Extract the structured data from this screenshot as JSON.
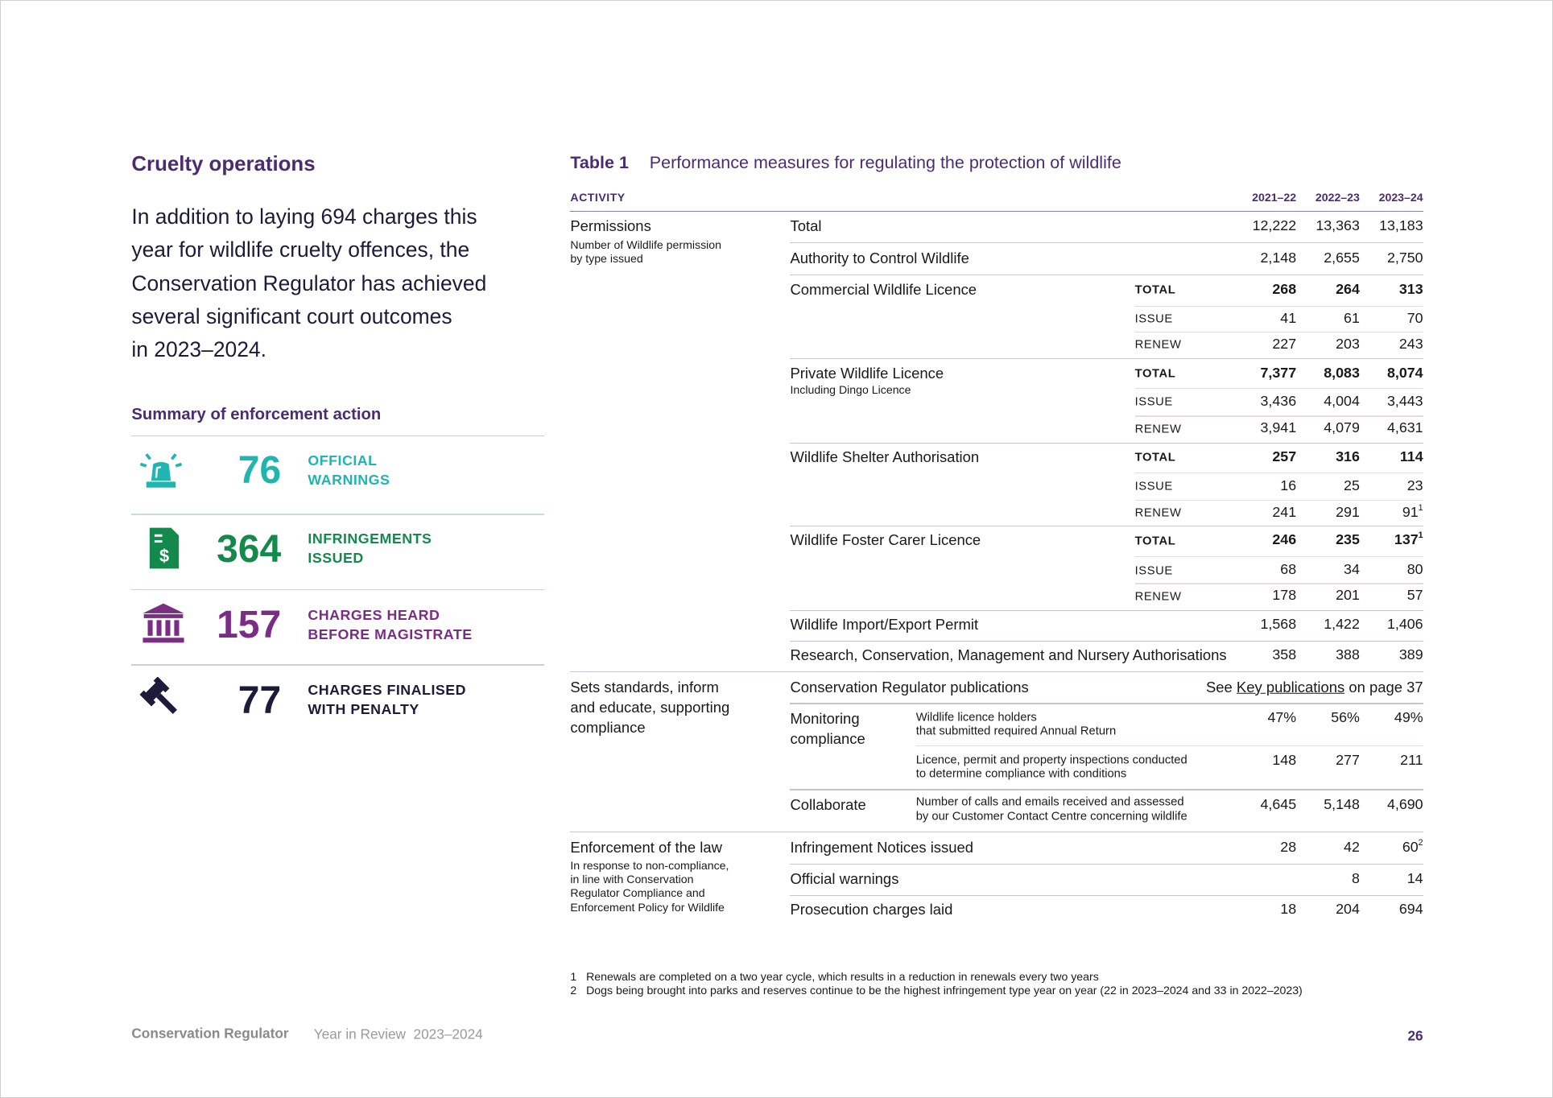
{
  "left": {
    "heading": "Cruelty operations",
    "intro": [
      "In addition to laying 694 charges this",
      "year for wildlife cruelty offences, the",
      "Conservation Regulator has achieved",
      "several significant court outcomes",
      "in 2023–2024."
    ],
    "summary_title": "Summary of enforcement action",
    "summary": [
      {
        "number": "76",
        "label": [
          "OFFICIAL",
          "WARNINGS"
        ]
      },
      {
        "number": "364",
        "label": [
          "INFRINGEMENTS",
          "ISSUED"
        ]
      },
      {
        "number": "157",
        "label": [
          "CHARGES HEARD",
          "BEFORE MAGISTRATE"
        ]
      },
      {
        "number": "77",
        "label": [
          "CHARGES FINALISED",
          "WITH PENALTY"
        ]
      }
    ]
  },
  "table": {
    "label": "Table 1",
    "title": "Performance measures for regulating the protection of wildlife",
    "columns": [
      "ACTIVITY",
      "2021–22",
      "2022–23",
      "2023–24"
    ],
    "groups": [
      {
        "activity": [
          "Permissions"
        ],
        "note": [
          "Number of Wildlife permission",
          "by type issued"
        ],
        "rows": [
          {
            "measure": "Total",
            "values": [
              "12,222",
              "13,363",
              "13,183"
            ]
          },
          {
            "measure": "Authority to Control Wildlife",
            "values": [
              "2,148",
              "2,655",
              "2,750"
            ]
          },
          {
            "measure": "Commercial Wildlife Licence",
            "sub": [
              {
                "type": "TOTAL",
                "values": [
                  "268",
                  "264",
                  "313"
                ]
              },
              {
                "type": "ISSUE",
                "values": [
                  "41",
                  "61",
                  "70"
                ]
              },
              {
                "type": "RENEW",
                "values": [
                  "227",
                  "203",
                  "243"
                ]
              }
            ]
          },
          {
            "measure": "Private Wildlife Licence",
            "detail": "Including Dingo Licence",
            "sub": [
              {
                "type": "TOTAL",
                "values": [
                  "7,377",
                  "8,083",
                  "8,074"
                ]
              },
              {
                "type": "ISSUE",
                "values": [
                  "3,436",
                  "4,004",
                  "3,443"
                ]
              },
              {
                "type": "RENEW",
                "values": [
                  "3,941",
                  "4,079",
                  "4,631"
                ]
              }
            ]
          },
          {
            "measure": "Wildlife Shelter Authorisation",
            "sub": [
              {
                "type": "TOTAL",
                "values": [
                  "257",
                  "316",
                  "114"
                ]
              },
              {
                "type": "ISSUE",
                "values": [
                  "16",
                  "25",
                  "23"
                ]
              },
              {
                "type": "RENEW",
                "values": [
                  "241",
                  "291",
                  {
                    "text": "91",
                    "sup": "1"
                  }
                ]
              }
            ]
          },
          {
            "measure": "Wildlife Foster Carer Licence",
            "sub": [
              {
                "type": "TOTAL",
                "values": [
                  "246",
                  "235",
                  {
                    "text": "137",
                    "sup": "1"
                  }
                ]
              },
              {
                "type": "ISSUE",
                "values": [
                  "68",
                  "34",
                  "80"
                ]
              },
              {
                "type": "RENEW",
                "values": [
                  "178",
                  "201",
                  "57"
                ]
              }
            ]
          },
          {
            "measure": "Wildlife Import/Export Permit",
            "values": [
              "1,568",
              "1,422",
              "1,406"
            ]
          },
          {
            "measure": "Research, Conservation, Management and Nursery Authorisations",
            "values": [
              "358",
              "388",
              "389"
            ]
          }
        ]
      },
      {
        "activity": [
          "Sets standards, inform",
          "and educate, supporting",
          "compliance"
        ],
        "rows": [
          {
            "measure": "Conservation Regulator publications",
            "reference": [
              "See ",
              "Key publications",
              " on page 37"
            ]
          },
          {
            "measure": [
              "Monitoring",
              "compliance"
            ],
            "items": [
              {
                "description": [
                  "Wildlife licence holders",
                  "that submitted required Annual Return"
                ],
                "values": [
                  "47%",
                  "56%",
                  "49%"
                ]
              },
              {
                "description": [
                  "Licence, permit and property inspections conducted",
                  "to determine compliance with conditions"
                ],
                "values": [
                  "148",
                  "277",
                  "211"
                ]
              }
            ]
          },
          {
            "measure": "Collaborate",
            "items": [
              {
                "description": [
                  "Number of calls and emails received and assessed",
                  "by our Customer Contact Centre concerning wildlife"
                ],
                "values": [
                  "4,645",
                  "5,148",
                  "4,690"
                ]
              }
            ]
          }
        ]
      },
      {
        "activity": [
          "Enforcement of the law"
        ],
        "note": [
          "In response to non-compliance,",
          "in line with Conservation",
          "Regulator Compliance and",
          "Enforcement Policy for Wildlife"
        ],
        "rows": [
          {
            "measure": "Infringement Notices issued",
            "values": [
              "28",
              "42",
              {
                "text": "60",
                "sup": "2"
              }
            ]
          },
          {
            "measure": "Official warnings",
            "values": [
              null,
              "8",
              "14"
            ]
          },
          {
            "measure": "Prosecution charges laid",
            "values": [
              "18",
              "204",
              "694"
            ]
          }
        ]
      }
    ]
  },
  "footnotes": [
    {
      "number": "1",
      "text": "Renewals are completed on a two year cycle, which results in a reduction in renewals every two years"
    },
    {
      "number": "2",
      "text": "Dogs being brought into parks and reserves continue to be the highest infringement type year on year (22 in 2023–2024 and 33 in 2022–2023)"
    }
  ],
  "footer": {
    "publisher": "Conservation Regulator",
    "publication": "Year in Review  2023–2024",
    "page": "26"
  }
}
